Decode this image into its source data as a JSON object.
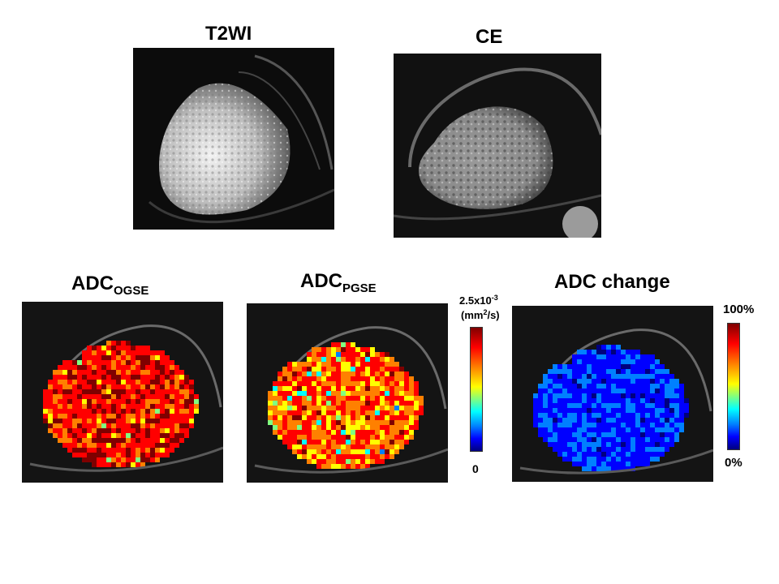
{
  "titles": {
    "t2wi": "T2WI",
    "ce": "CE",
    "adc_ogse_main": "ADC",
    "adc_ogse_sub": "OGSE",
    "adc_pgse_main": "ADC",
    "adc_pgse_sub": "PGSE",
    "adc_change": "ADC change"
  },
  "scale_adc": {
    "max_mantissa": "2.5x10",
    "max_exponent": "-3",
    "unit_prefix": "(mm",
    "unit_exp": "2",
    "unit_suffix": "/s)",
    "min": "0"
  },
  "scale_change": {
    "max": "100%",
    "min": "0%"
  },
  "colormap": [
    "#00007f",
    "#0000ff",
    "#0080ff",
    "#00ffff",
    "#80ff80",
    "#ffff00",
    "#ff8000",
    "#ff0000",
    "#7f0000"
  ]
}
